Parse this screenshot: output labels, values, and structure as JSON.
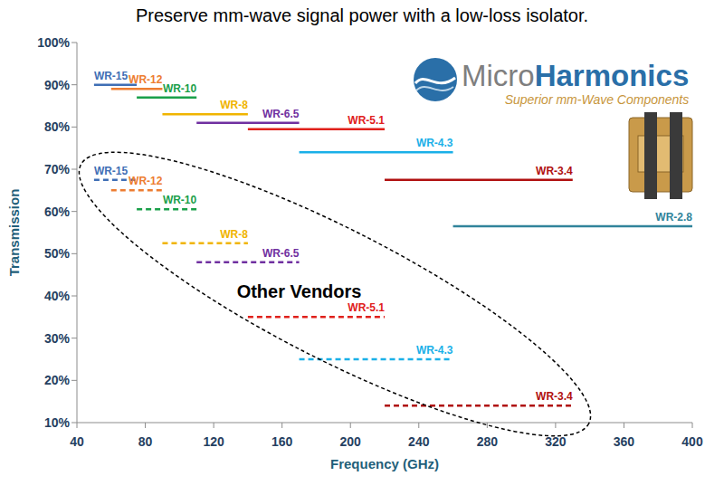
{
  "chart_data": {
    "type": "line",
    "title": "Preserve mm-wave signal power with a low-loss isolator.",
    "x_label": "Frequency (GHz)",
    "y_label": "Transmission",
    "xlim": [
      40,
      400
    ],
    "xticks": [
      40,
      80,
      120,
      160,
      200,
      240,
      280,
      320,
      360,
      400
    ],
    "ylim": [
      10,
      100
    ],
    "yticks": [
      {
        "value": 10,
        "label": "10%"
      },
      {
        "value": 20,
        "label": "20%"
      },
      {
        "value": 30,
        "label": "30%"
      },
      {
        "value": 40,
        "label": "40%"
      },
      {
        "value": 50,
        "label": "50%"
      },
      {
        "value": 60,
        "label": "60%"
      },
      {
        "value": 70,
        "label": "70%"
      },
      {
        "value": 80,
        "label": "80%"
      },
      {
        "value": 90,
        "label": "90%"
      },
      {
        "value": 100,
        "label": "100%"
      }
    ],
    "grid": false,
    "annotations": [
      {
        "text": "Other Vendors",
        "x": 170,
        "y": 41
      }
    ],
    "logo": {
      "name": "MicroHarmonics",
      "tagline": "Superior mm-Wave Components"
    },
    "series": [
      {
        "name": "WR-15",
        "color": "#3f6fb5",
        "line_style": "solid",
        "x": [
          50,
          75
        ],
        "values": [
          90,
          90
        ]
      },
      {
        "name": "WR-12",
        "color": "#ed7d31",
        "line_style": "solid",
        "x": [
          60,
          90
        ],
        "values": [
          89,
          89
        ]
      },
      {
        "name": "WR-10",
        "color": "#1aa04a",
        "line_style": "solid",
        "x": [
          75,
          110
        ],
        "values": [
          87,
          87
        ]
      },
      {
        "name": "WR-8",
        "color": "#f0b400",
        "line_style": "solid",
        "x": [
          90,
          140
        ],
        "values": [
          83,
          83
        ]
      },
      {
        "name": "WR-6.5",
        "color": "#7030a0",
        "line_style": "solid",
        "x": [
          110,
          170
        ],
        "values": [
          81,
          81
        ]
      },
      {
        "name": "WR-5.1",
        "color": "#e0201b",
        "line_style": "solid",
        "x": [
          140,
          220
        ],
        "values": [
          79.5,
          79.5
        ]
      },
      {
        "name": "WR-4.3",
        "color": "#1ab0e8",
        "line_style": "solid",
        "x": [
          170,
          260
        ],
        "values": [
          74,
          74
        ]
      },
      {
        "name": "WR-3.4",
        "color": "#b01010",
        "line_style": "solid",
        "x": [
          220,
          330
        ],
        "values": [
          67.5,
          67.5
        ]
      },
      {
        "name": "WR-2.8",
        "color": "#31849b",
        "line_style": "solid",
        "x": [
          260,
          400
        ],
        "values": [
          56.5,
          56.5
        ]
      },
      {
        "name": "WR-15",
        "color": "#3f6fb5",
        "line_style": "dashed",
        "x": [
          50,
          75
        ],
        "values": [
          67.5,
          67.5
        ]
      },
      {
        "name": "WR-12",
        "color": "#ed7d31",
        "line_style": "dashed",
        "x": [
          60,
          90
        ],
        "values": [
          65,
          65
        ]
      },
      {
        "name": "WR-10",
        "color": "#1aa04a",
        "line_style": "dashed",
        "x": [
          75,
          110
        ],
        "values": [
          60.5,
          60.5
        ]
      },
      {
        "name": "WR-8",
        "color": "#f0b400",
        "line_style": "dashed",
        "x": [
          90,
          140
        ],
        "values": [
          52.5,
          52.5
        ]
      },
      {
        "name": "WR-6.5",
        "color": "#7030a0",
        "line_style": "dashed",
        "x": [
          110,
          170
        ],
        "values": [
          48,
          48
        ]
      },
      {
        "name": "WR-5.1",
        "color": "#e0201b",
        "line_style": "dashed",
        "x": [
          140,
          220
        ],
        "values": [
          35,
          35
        ]
      },
      {
        "name": "WR-4.3",
        "color": "#1ab0e8",
        "line_style": "dashed",
        "x": [
          170,
          260
        ],
        "values": [
          25,
          25
        ]
      },
      {
        "name": "WR-3.4",
        "color": "#b01010",
        "line_style": "dashed",
        "x": [
          220,
          330
        ],
        "values": [
          14,
          14
        ]
      }
    ]
  }
}
